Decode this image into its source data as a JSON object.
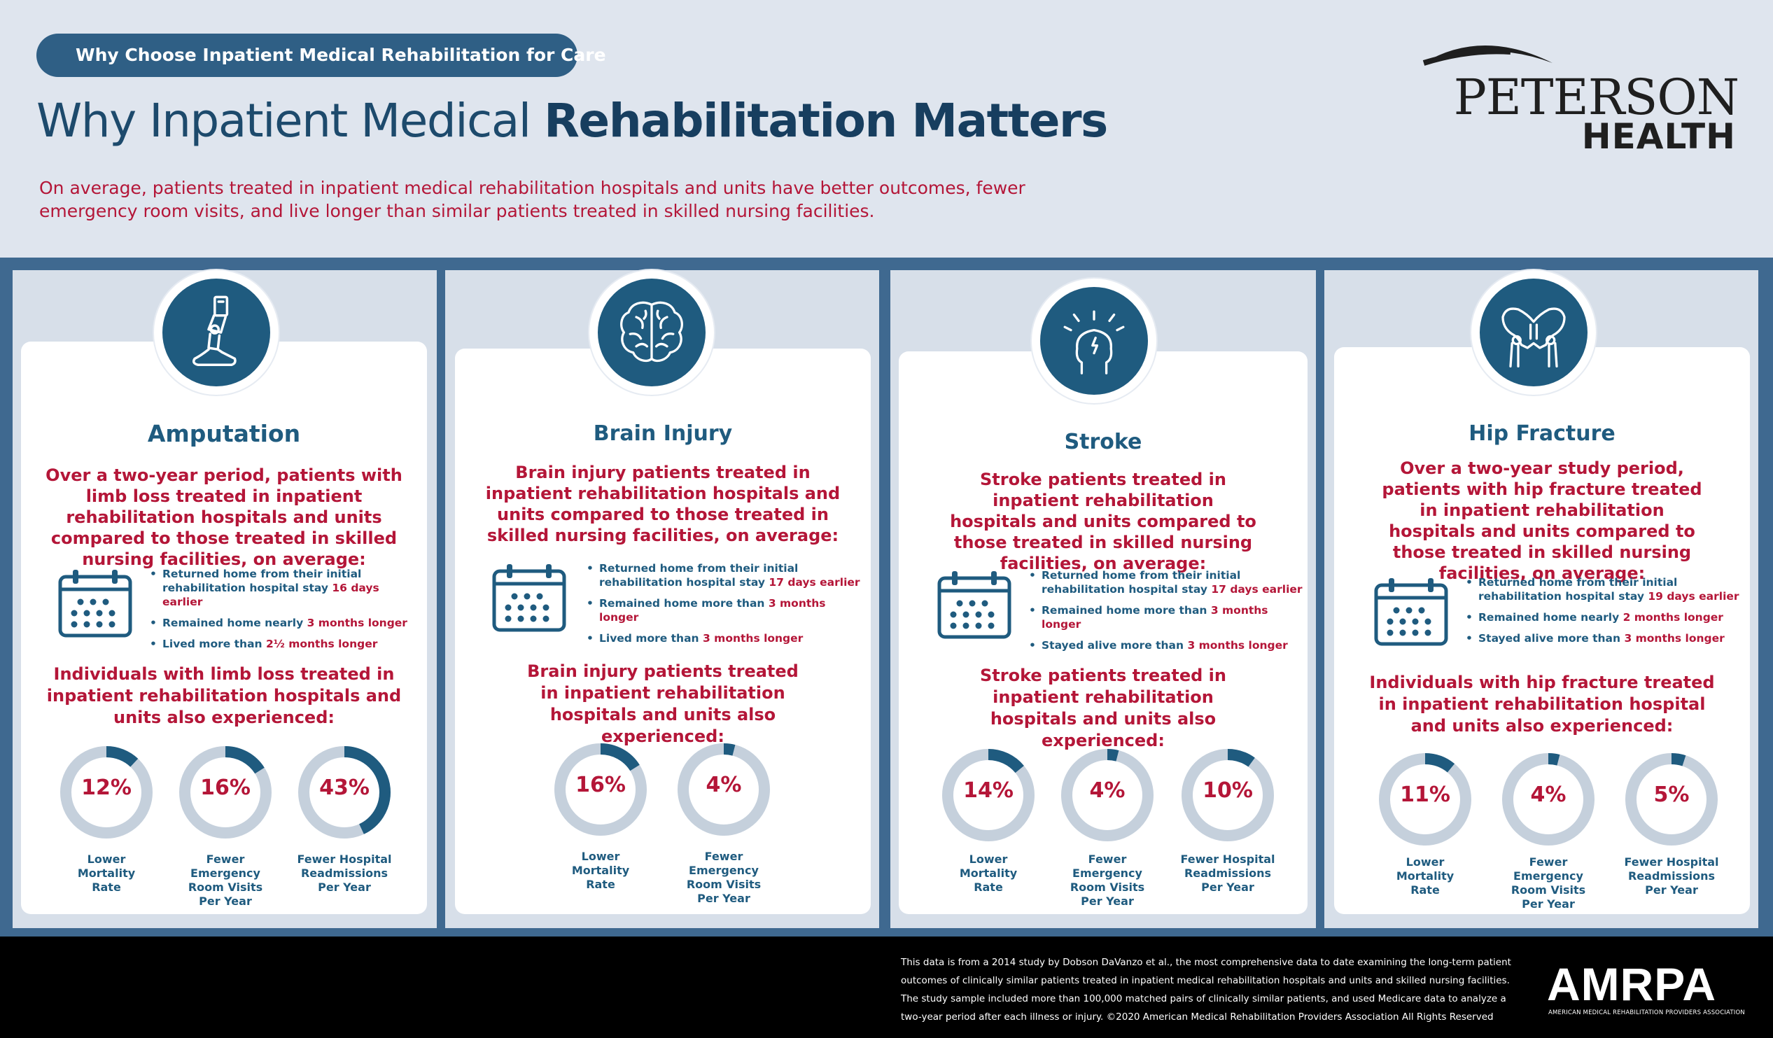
{
  "header": {
    "pill": "Why Choose Inpatient Medical Rehabilitation for Care",
    "title_regular": "Why Inpatient Medical ",
    "title_bold": "Rehabilitation Matters",
    "intro": "On average, patients treated in inpatient medical rehabilitation hospitals and units have better outcomes, fewer emergency room visits, and live longer than similar patients treated in skilled nursing facilities."
  },
  "logo": {
    "name": "PETERSON",
    "sub": "HEALTH"
  },
  "colors": {
    "navy": "#1f5b7f",
    "red": "#b41638",
    "band": "#3f6990",
    "ring": "#c5d0dc"
  },
  "cards": [
    {
      "icon": "prosthetic-leg-icon",
      "title": "Amputation",
      "lead": "Over a two-year period, patients with limb loss treated in inpatient rehabilitation hospitals and units compared to those treated in skilled nursing facilities, on average:",
      "bullets": [
        {
          "line1": "Returned home from their initial",
          "line2": "rehabilitation hospital stay ",
          "hl": "16 days earlier"
        },
        {
          "line1": "Remained home nearly ",
          "hl": "3 months longer"
        },
        {
          "line1": "Lived more than ",
          "hl": "2½ months longer"
        }
      ],
      "sub": "Individuals with limb loss treated in inpatient rehabilitation hospitals and units also experienced:",
      "stats": [
        {
          "pct": "12%",
          "value": 12,
          "label": "Lower Mortality Rate"
        },
        {
          "pct": "16%",
          "value": 16,
          "label": "Fewer Emergency Room Visits Per Year"
        },
        {
          "pct": "43%",
          "value": 43,
          "label": "Fewer Hospital Readmissions Per Year"
        }
      ]
    },
    {
      "icon": "brain-icon",
      "title": "Brain Injury",
      "lead": "Brain injury patients treated in inpatient rehabilitation hospitals and units compared to those treated in skilled nursing facilities, on average:",
      "bullets": [
        {
          "line1": "Returned home from their initial",
          "line2": "rehabilitation hospital stay ",
          "hl": "17 days earlier"
        },
        {
          "line1": "Remained home more than ",
          "hl": "3 months longer"
        },
        {
          "line1": "Lived more than ",
          "hl": "3 months longer"
        }
      ],
      "sub": "Brain injury patients treated in inpatient rehabilitation hospitals and units also experienced:",
      "stats": [
        {
          "pct": "16%",
          "value": 16,
          "label": "Lower Mortality Rate"
        },
        {
          "pct": "4%",
          "value": 4,
          "label": "Fewer Emergency Room Visits Per Year"
        }
      ]
    },
    {
      "icon": "head-pain-icon",
      "title": "Stroke",
      "lead": "Stroke patients treated in inpatient rehabilitation hospitals and units compared to those treated in skilled nursing facilities, on average:",
      "bullets": [
        {
          "line1": "Returned home from their initial",
          "line2": "rehabilitation hospital stay ",
          "hl": "17 days earlier"
        },
        {
          "line1": "Remained home more than ",
          "hl": "3 months longer"
        },
        {
          "line1": "Stayed alive more than ",
          "hl": "3 months longer"
        }
      ],
      "sub": "Stroke patients treated in inpatient rehabilitation hospitals and units also experienced:",
      "stats": [
        {
          "pct": "14%",
          "value": 14,
          "label": "Lower Mortality Rate"
        },
        {
          "pct": "4%",
          "value": 4,
          "label": "Fewer Emergency Room Visits Per Year"
        },
        {
          "pct": "10%",
          "value": 10,
          "label": "Fewer Hospital Readmissions Per Year"
        }
      ]
    },
    {
      "icon": "pelvis-icon",
      "title": "Hip Fracture",
      "lead": "Over a two-year study period, patients with hip fracture treated in inpatient rehabilitation hospitals and units compared to those treated in skilled nursing facilities, on average:",
      "bullets": [
        {
          "line1": "Returned home from their initial",
          "line2": "rehabilitation hospital  stay ",
          "hl": "19 days earlier"
        },
        {
          "line1": "Remained home nearly ",
          "hl": "2 months longer"
        },
        {
          "line1": "Stayed alive more than ",
          "hl": "3 months longer"
        }
      ],
      "sub": "Individuals with hip fracture treated in inpatient rehabilitation hospital and units also experienced:",
      "stats": [
        {
          "pct": "11%",
          "value": 11,
          "label": "Lower Mortality Rate"
        },
        {
          "pct": "4%",
          "value": 4,
          "label": "Fewer Emergency Room Visits Per Year"
        },
        {
          "pct": "5%",
          "value": 5,
          "label": "Fewer Hospital Readmissions Per Year"
        }
      ]
    }
  ],
  "footer": {
    "text": "This data is from a 2014 study by Dobson DaVanzo et al., the most comprehensive data to date examining the long-term patient outcomes of clinically similar patients treated in inpatient medical rehabilitation hospitals and units and skilled nursing facilities. The study sample included more than 100,000 matched pairs of clinically similar patients, and used Medicare data to analyze a two-year period after each illness or injury. ©2020 American Medical Rehabilitation Providers Association All Rights Reserved",
    "org": "AMRPA",
    "org_full": "AMERICAN MEDICAL REHABILITATION PROVIDERS ASSOCIATION"
  }
}
